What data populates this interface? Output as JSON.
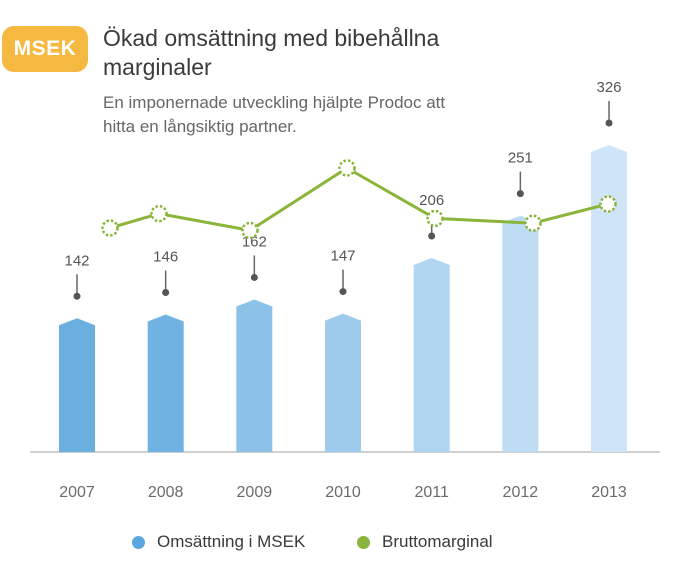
{
  "header": {
    "badge": "MSEK",
    "title_line1": "Ökad omsättning med bibehållna",
    "title_line2": "marginaler",
    "subtitle_line1": "En imponernade utveckling hjälpte Prodoc att",
    "subtitle_line2": "hitta en långsiktig partner."
  },
  "chart_data": {
    "type": "bar",
    "categories": [
      "2007",
      "2008",
      "2009",
      "2010",
      "2011",
      "2012",
      "2013"
    ],
    "series": [
      {
        "name": "Omsättning i MSEK",
        "values": [
          142,
          146,
          162,
          147,
          206,
          251,
          326
        ]
      }
    ],
    "line_series": {
      "name": "Bruttomarginal",
      "relative_values": [
        0.3,
        0.36,
        0.29,
        0.55,
        0.34,
        0.32,
        0.4
      ]
    },
    "bar_colors": [
      "#6aafe0",
      "#70b3e2",
      "#8cc1e8",
      "#9ecbec",
      "#b0d5f1",
      "#bddcf4",
      "#cfe5f7"
    ],
    "line_color": "#8ab53a",
    "label_color": "#555555",
    "axis_color": "#bfbfbf",
    "ylim": [
      0,
      326
    ],
    "grid": false,
    "legend_position": "bottom"
  },
  "legend": {
    "items": [
      {
        "label": "Omsättning i MSEK",
        "color": "#5ba8e0"
      },
      {
        "label": "Bruttomarginal",
        "color": "#8ab53a"
      }
    ]
  }
}
